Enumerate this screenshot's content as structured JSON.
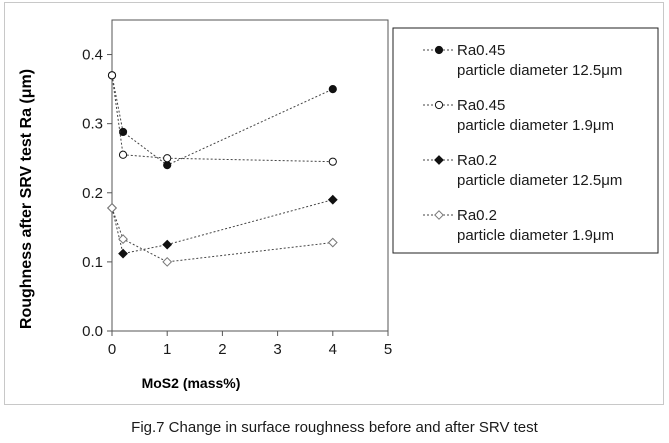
{
  "caption": "Fig.7 Change in surface roughness before and after SRV test",
  "chart_data": {
    "type": "line",
    "title": "",
    "xlabel": "MoS2 (mass%)",
    "ylabel": "Roughness after SRV test Ra (μm)",
    "xlim": [
      0,
      5
    ],
    "ylim": [
      0,
      0.45
    ],
    "x_ticks": [
      0,
      1,
      2,
      3,
      4,
      5
    ],
    "x_tick_labels": [
      "0",
      "1",
      "2",
      "3",
      "4",
      "5"
    ],
    "y_ticks": [
      0,
      0.1,
      0.2,
      0.3,
      0.4
    ],
    "y_tick_labels": [
      "0.0",
      "0.1",
      "0.2",
      "0.3",
      "0.4"
    ],
    "grid": false,
    "legend_position": "right",
    "series": [
      {
        "name_line1": "Ra0.45",
        "name_line2": "particle diameter 12.5μm",
        "marker": "circle",
        "filled": true,
        "x": [
          0,
          0.2,
          1,
          4
        ],
        "y": [
          0.37,
          0.288,
          0.24,
          0.35
        ]
      },
      {
        "name_line1": "Ra0.45",
        "name_line2": "particle diameter 1.9μm",
        "marker": "circle",
        "filled": false,
        "x": [
          0,
          0.2,
          1,
          4
        ],
        "y": [
          0.37,
          0.255,
          0.25,
          0.245
        ]
      },
      {
        "name_line1": "Ra0.2",
        "name_line2": "particle diameter 12.5μm",
        "marker": "diamond",
        "filled": true,
        "x": [
          0,
          0.2,
          1,
          4
        ],
        "y": [
          0.178,
          0.112,
          0.125,
          0.19
        ]
      },
      {
        "name_line1": "Ra0.2",
        "name_line2": "particle diameter 1.9μm",
        "marker": "diamond",
        "filled": false,
        "x": [
          0,
          0.2,
          1,
          4
        ],
        "y": [
          0.178,
          0.133,
          0.1,
          0.128
        ]
      }
    ]
  }
}
